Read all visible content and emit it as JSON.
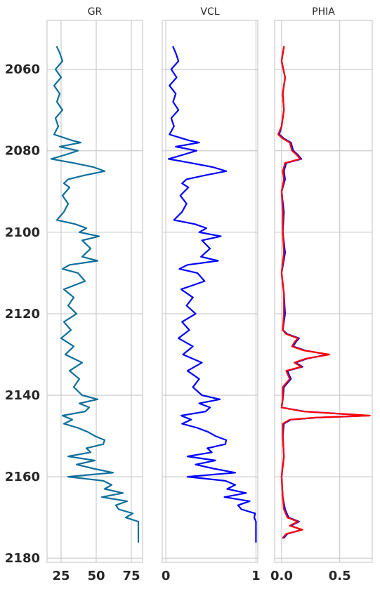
{
  "chart_data": [
    {
      "type": "line",
      "title": "GR",
      "xlim": [
        15,
        83
      ],
      "xticks": [
        25,
        50,
        75
      ],
      "xtick_labels": [
        "25",
        "50",
        "75"
      ],
      "ylim": [
        2181,
        2048
      ],
      "yticks": [
        2060,
        2080,
        2100,
        2120,
        2140,
        2160,
        2180
      ],
      "ytick_labels": [
        "2060",
        "2080",
        "2100",
        "2120",
        "2140",
        "2160",
        "2180"
      ],
      "series": [
        {
          "name": "GR",
          "color": "#0e6f9c",
          "depth": [
            2054.5,
            2056,
            2058,
            2060,
            2062,
            2064,
            2066,
            2068,
            2070,
            2072,
            2074,
            2076,
            2077.5,
            2078,
            2079,
            2080,
            2081,
            2082,
            2083,
            2084,
            2085,
            2086,
            2087,
            2088,
            2089,
            2091,
            2093,
            2095,
            2097,
            2098,
            2099,
            2100,
            2101,
            2102,
            2104,
            2106,
            2107,
            2108,
            2109,
            2110,
            2112,
            2114,
            2116,
            2118,
            2120,
            2122,
            2124,
            2126,
            2128,
            2130,
            2132,
            2134,
            2136,
            2138,
            2140,
            2141,
            2142,
            2143,
            2144,
            2145,
            2146,
            2147,
            2148,
            2149,
            2150,
            2151,
            2152,
            2153,
            2154,
            2155,
            2156,
            2157,
            2158,
            2159,
            2160,
            2161,
            2162,
            2163,
            2164,
            2165,
            2166,
            2167,
            2168,
            2169,
            2170,
            2171,
            2172,
            2176
          ],
          "values": [
            22,
            24,
            26,
            21,
            25,
            20,
            24,
            22,
            26,
            21,
            23,
            20,
            33,
            39,
            24,
            37,
            28,
            18,
            34,
            48,
            56,
            42,
            30,
            27,
            31,
            26,
            30,
            27,
            22,
            35,
            43,
            38,
            52,
            40,
            46,
            40,
            51,
            31,
            26,
            37,
            42,
            27,
            34,
            30,
            36,
            27,
            32,
            25,
            34,
            28,
            40,
            31,
            38,
            34,
            40,
            51,
            38,
            45,
            42,
            26,
            33,
            27,
            37,
            44,
            49,
            56,
            55,
            43,
            46,
            30,
            49,
            36,
            48,
            62,
            30,
            55,
            61,
            56,
            69,
            54,
            72,
            64,
            66,
            76,
            71,
            80,
            80,
            80
          ]
        }
      ]
    },
    {
      "type": "line",
      "title": "VCL",
      "xlim": [
        -0.04,
        1.02
      ],
      "xticks": [
        0,
        1
      ],
      "xtick_labels": [
        "0",
        "1"
      ],
      "ylim": [
        2181,
        2048
      ],
      "yticks": [
        2060,
        2080,
        2100,
        2120,
        2140,
        2160,
        2180
      ],
      "series": [
        {
          "name": "VCL",
          "color": "#0000ff",
          "depth": [
            2054.5,
            2056,
            2058,
            2060,
            2062,
            2064,
            2066,
            2068,
            2070,
            2072,
            2074,
            2076,
            2077.5,
            2078,
            2079,
            2080,
            2081,
            2082,
            2083,
            2084,
            2085,
            2086,
            2087,
            2088,
            2089,
            2091,
            2093,
            2095,
            2097,
            2098,
            2099,
            2100,
            2101,
            2102,
            2104,
            2106,
            2107,
            2108,
            2109,
            2110,
            2112,
            2114,
            2116,
            2118,
            2120,
            2122,
            2124,
            2126,
            2128,
            2130,
            2132,
            2134,
            2136,
            2138,
            2140,
            2141,
            2142,
            2143,
            2144,
            2145,
            2146,
            2147,
            2148,
            2149,
            2150,
            2151,
            2152,
            2153,
            2154,
            2155,
            2156,
            2157,
            2158,
            2159,
            2160,
            2161,
            2162,
            2163,
            2164,
            2165,
            2166,
            2167,
            2168,
            2169,
            2170,
            2171,
            2172,
            2176
          ],
          "values": [
            0.08,
            0.11,
            0.14,
            0.06,
            0.12,
            0.04,
            0.11,
            0.08,
            0.14,
            0.06,
            0.09,
            0.04,
            0.26,
            0.37,
            0.11,
            0.34,
            0.19,
            0.03,
            0.28,
            0.52,
            0.67,
            0.44,
            0.23,
            0.18,
            0.25,
            0.16,
            0.23,
            0.18,
            0.09,
            0.32,
            0.45,
            0.37,
            0.61,
            0.4,
            0.49,
            0.39,
            0.58,
            0.24,
            0.15,
            0.35,
            0.43,
            0.17,
            0.3,
            0.23,
            0.33,
            0.18,
            0.26,
            0.14,
            0.3,
            0.19,
            0.4,
            0.24,
            0.37,
            0.3,
            0.4,
            0.6,
            0.37,
            0.49,
            0.44,
            0.17,
            0.28,
            0.18,
            0.35,
            0.47,
            0.55,
            0.67,
            0.66,
            0.46,
            0.51,
            0.24,
            0.55,
            0.33,
            0.53,
            0.77,
            0.24,
            0.66,
            0.77,
            0.68,
            0.89,
            0.65,
            0.93,
            0.8,
            0.84,
            0.99,
            0.98,
            1.0,
            1.0,
            1.0
          ]
        }
      ]
    },
    {
      "type": "line",
      "title": "PHIA",
      "xlim": [
        -0.06,
        0.78
      ],
      "xticks": [
        0.0,
        0.5
      ],
      "xtick_labels": [
        "0.0",
        "0.5"
      ],
      "ylim": [
        2181,
        2048
      ],
      "yticks": [
        2060,
        2080,
        2100,
        2120,
        2140,
        2160,
        2180
      ],
      "series": [
        {
          "name": "PHIA-blue",
          "color": "#0000ff",
          "depth": [
            2054.5,
            2058,
            2062,
            2066,
            2070,
            2074,
            2076,
            2077,
            2078,
            2080,
            2081,
            2082,
            2083,
            2085,
            2087,
            2090,
            2095,
            2100,
            2105,
            2110,
            2115,
            2120,
            2124,
            2125,
            2126,
            2127,
            2128,
            2129,
            2130,
            2131,
            2132,
            2133,
            2134,
            2136,
            2138,
            2141,
            2143,
            2144,
            2145,
            2145.5,
            2146,
            2147,
            2150,
            2155,
            2160,
            2165,
            2168,
            2170,
            2171,
            2172,
            2173,
            2174,
            2175
          ],
          "values": [
            0.02,
            0.0,
            0.03,
            0.01,
            0.02,
            0.0,
            -0.02,
            0.02,
            0.08,
            0.1,
            0.14,
            0.17,
            0.04,
            0.02,
            0.03,
            0.0,
            0.02,
            0.01,
            0.03,
            0.0,
            0.02,
            0.03,
            0.01,
            0.05,
            0.15,
            0.12,
            0.1,
            0.2,
            0.4,
            0.22,
            0.12,
            0.18,
            0.05,
            0.08,
            0.02,
            0.01,
            0.0,
            0.2,
            0.75,
            0.3,
            0.08,
            0.02,
            0.01,
            0.02,
            0.0,
            0.01,
            0.03,
            0.06,
            0.15,
            0.08,
            0.17,
            0.05,
            0.02
          ]
        },
        {
          "name": "PHIA-red",
          "color": "#ff0000",
          "depth": [
            2054.5,
            2058,
            2062,
            2066,
            2070,
            2074,
            2076,
            2077,
            2078,
            2080,
            2081,
            2082,
            2083,
            2085,
            2087,
            2090,
            2095,
            2100,
            2105,
            2110,
            2115,
            2120,
            2124,
            2125,
            2126,
            2127,
            2128,
            2129,
            2130,
            2131,
            2132,
            2133,
            2134,
            2136,
            2138,
            2141,
            2143,
            2144,
            2145,
            2145.5,
            2146,
            2147,
            2150,
            2155,
            2160,
            2165,
            2168,
            2170,
            2171,
            2172,
            2173,
            2174,
            2175
          ],
          "values": [
            0.02,
            0.0,
            0.03,
            0.01,
            0.02,
            0.0,
            -0.03,
            0.01,
            0.07,
            0.09,
            0.13,
            0.16,
            0.03,
            0.01,
            0.02,
            0.0,
            0.01,
            0.01,
            0.02,
            0.0,
            0.02,
            0.02,
            0.01,
            0.04,
            0.14,
            0.11,
            0.09,
            0.19,
            0.41,
            0.21,
            0.11,
            0.17,
            0.04,
            0.07,
            0.01,
            0.01,
            0.0,
            0.19,
            0.76,
            0.29,
            0.07,
            0.01,
            0.01,
            0.02,
            0.0,
            0.01,
            0.02,
            0.05,
            0.14,
            0.07,
            0.18,
            0.04,
            0.01
          ]
        }
      ]
    }
  ]
}
